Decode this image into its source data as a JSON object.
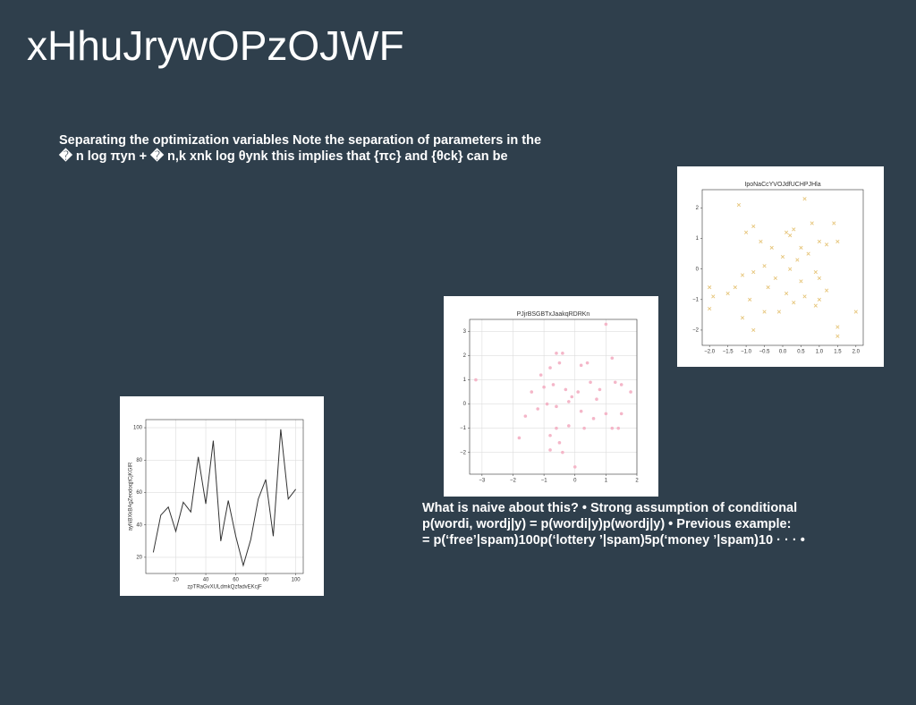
{
  "title": "xHhuJrywOPzOJWF",
  "paragraphs": [
    {
      "lines": [
        "Separating the optimization variables Note the separation of parameters in the",
        "� n log πyn + � n,k xnk log θynk this implies that {πc} and {θck} can be"
      ]
    },
    {
      "lines": [
        "What is naive about this? • Strong assumption of conditional",
        "p(wordi, wordj|y) = p(wordi|y)p(wordj|y) • Previous example:",
        "= p(‘free’|spam)100p(‘lottery ’|spam)5p(‘money ’|spam)10 · · · •"
      ]
    }
  ],
  "chart_data": [
    {
      "type": "line",
      "x_label": "zpTRaGvXULdmkQzfadvEKcjF",
      "y_label": "ayNBXkBAgZeodoqjtCjKGIR",
      "color": "#333333",
      "grid": true,
      "x": [
        5,
        10,
        15,
        20,
        25,
        30,
        35,
        40,
        45,
        50,
        55,
        60,
        65,
        70,
        75,
        80,
        85,
        90,
        95,
        100
      ],
      "values": [
        23,
        46,
        51,
        36,
        54,
        48,
        82,
        53,
        92,
        30,
        55,
        33,
        15,
        31,
        56,
        68,
        33,
        99,
        56,
        62
      ],
      "xlim": [
        0,
        105
      ],
      "xticks": [
        20,
        40,
        60,
        80,
        100
      ],
      "ylim": [
        10,
        105
      ],
      "yticks": [
        20,
        40,
        60,
        80,
        100
      ]
    },
    {
      "type": "scatter",
      "title": "PJjrBSGBTxJaakqRDRKn",
      "color": "#f4b6c8",
      "marker": "o",
      "grid": true,
      "x": [
        1.0,
        -3.2,
        -0.6,
        -0.4,
        -0.5,
        0.2,
        0.4,
        1.2,
        -0.8,
        -1.1,
        -1.4,
        -1.0,
        -0.7,
        -0.3,
        0.1,
        0.5,
        0.8,
        1.3,
        1.5,
        1.8,
        -1.6,
        -1.2,
        -0.9,
        -0.6,
        -0.2,
        0.2,
        0.6,
        1.0,
        1.2,
        1.4,
        0.3,
        -0.2,
        -0.6,
        -0.8,
        -0.5,
        -0.8,
        -0.4,
        -1.8,
        0.0,
        1.5,
        0.7,
        -0.1
      ],
      "values": [
        3.3,
        1.0,
        2.1,
        2.1,
        1.7,
        1.6,
        1.7,
        1.9,
        1.5,
        1.2,
        0.5,
        0.7,
        0.8,
        0.6,
        0.5,
        0.9,
        0.6,
        0.9,
        0.8,
        0.5,
        -0.5,
        -0.2,
        0.0,
        -0.1,
        0.1,
        -0.3,
        -0.6,
        -0.4,
        -1.0,
        -1.0,
        -1.0,
        -0.9,
        -1.0,
        -1.3,
        -1.6,
        -1.9,
        -2.0,
        -1.4,
        -2.6,
        -0.4,
        0.2,
        0.3
      ],
      "xlim": [
        -3.4,
        2.0
      ],
      "xticks": [
        {
          "value": -3,
          "label": "−3"
        },
        {
          "value": -2,
          "label": "−2"
        },
        {
          "value": -1,
          "label": "−1"
        },
        0,
        1,
        2
      ],
      "ylim": [
        -2.9,
        3.5
      ],
      "yticks": [
        {
          "value": -2,
          "label": "−2"
        },
        {
          "value": -1,
          "label": "−1"
        },
        0,
        1,
        2,
        3
      ]
    },
    {
      "type": "scatter",
      "title": "IpoNaCcYVOJdfUCHPJHla",
      "color": "#e6c57a",
      "marker": "x",
      "grid": false,
      "x": [
        -1.2,
        -0.8,
        -1.0,
        -0.6,
        0.6,
        0.1,
        0.2,
        0.3,
        0.5,
        0.8,
        1.0,
        1.4,
        1.5,
        1.2,
        -0.3,
        0.0,
        0.4,
        0.7,
        -2.0,
        -1.9,
        -1.5,
        -1.3,
        -1.1,
        -0.8,
        -0.5,
        -0.2,
        0.2,
        0.5,
        0.9,
        1.0,
        1.2,
        0.9,
        0.3,
        -0.1,
        -0.5,
        -0.9,
        -1.1,
        -0.8,
        -2.0,
        1.5,
        1.5,
        2.0,
        1.0,
        0.6,
        -0.4,
        0.1
      ],
      "values": [
        2.1,
        1.4,
        1.2,
        0.9,
        2.3,
        1.2,
        1.1,
        1.3,
        0.7,
        1.5,
        0.9,
        1.5,
        0.9,
        0.8,
        0.7,
        0.4,
        0.3,
        0.5,
        -0.6,
        -0.9,
        -0.8,
        -0.6,
        -0.2,
        -0.1,
        0.1,
        -0.3,
        0.0,
        -0.4,
        -0.1,
        -0.3,
        -0.7,
        -1.2,
        -1.1,
        -1.4,
        -1.4,
        -1.0,
        -1.6,
        -2.0,
        -1.3,
        -1.9,
        -2.2,
        -1.4,
        -1.0,
        -0.9,
        -0.6,
        -0.8
      ],
      "xlim": [
        -2.2,
        2.2
      ],
      "xticks": [
        {
          "value": -2,
          "label": "−2.0"
        },
        {
          "value": -1.5,
          "label": "−1.5"
        },
        {
          "value": -1,
          "label": "−1.0"
        },
        {
          "value": -0.5,
          "label": "−0.5"
        },
        {
          "value": 0,
          "label": "0.0"
        },
        {
          "value": 0.5,
          "label": "0.5"
        },
        {
          "value": 1,
          "label": "1.0"
        },
        {
          "value": 1.5,
          "label": "1.5"
        },
        {
          "value": 2,
          "label": "2.0"
        }
      ],
      "ylim": [
        -2.5,
        2.6
      ],
      "yticks": [
        {
          "value": -2,
          "label": "−2"
        },
        {
          "value": -1,
          "label": "−1"
        },
        0,
        1,
        2
      ]
    }
  ]
}
